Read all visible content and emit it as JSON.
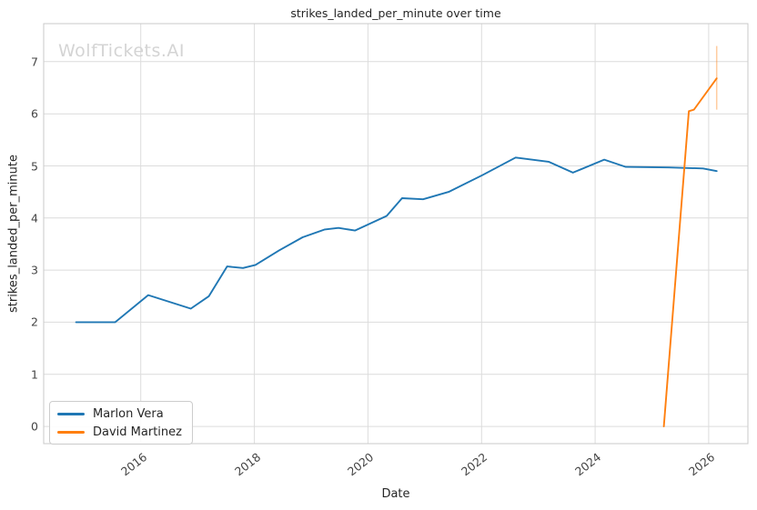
{
  "watermark": "WolfTickets.AI",
  "chart_data": {
    "type": "line",
    "title": "strikes_landed_per_minute over time",
    "xlabel": "Date",
    "ylabel": "strikes_landed_per_minute",
    "xlim": [
      2014.29,
      2026.69
    ],
    "ylim": [
      -0.33,
      7.73
    ],
    "x_ticks": [
      2016,
      2018,
      2020,
      2022,
      2024,
      2026
    ],
    "y_ticks": [
      0,
      1,
      2,
      3,
      4,
      5,
      6,
      7
    ],
    "grid": true,
    "legend_position": "lower left",
    "series": [
      {
        "name": "Marlon Vera",
        "color": "#1f77b4",
        "points": [
          [
            2014.86,
            2.0
          ],
          [
            2015.55,
            2.0
          ],
          [
            2016.13,
            2.52
          ],
          [
            2016.88,
            2.26
          ],
          [
            2017.2,
            2.5
          ],
          [
            2017.52,
            3.07
          ],
          [
            2017.8,
            3.04
          ],
          [
            2018.02,
            3.1
          ],
          [
            2018.44,
            3.38
          ],
          [
            2018.85,
            3.63
          ],
          [
            2019.24,
            3.78
          ],
          [
            2019.48,
            3.81
          ],
          [
            2019.77,
            3.76
          ],
          [
            2020.33,
            4.04
          ],
          [
            2020.6,
            4.38
          ],
          [
            2020.97,
            4.36
          ],
          [
            2021.42,
            4.5
          ],
          [
            2022.01,
            4.82
          ],
          [
            2022.6,
            5.16
          ],
          [
            2023.18,
            5.08
          ],
          [
            2023.61,
            4.87
          ],
          [
            2024.16,
            5.12
          ],
          [
            2024.54,
            4.98
          ],
          [
            2025.3,
            4.97
          ],
          [
            2025.9,
            4.95
          ],
          [
            2026.14,
            4.9
          ]
        ]
      },
      {
        "name": "David Martinez",
        "color": "#ff7f0e",
        "points": [
          [
            2025.21,
            0.0
          ],
          [
            2025.65,
            6.05
          ],
          [
            2025.74,
            6.08
          ],
          [
            2026.14,
            6.68
          ]
        ],
        "error_bar": {
          "x": 2026.14,
          "y_low": 6.08,
          "y_high": 7.3
        }
      }
    ]
  }
}
